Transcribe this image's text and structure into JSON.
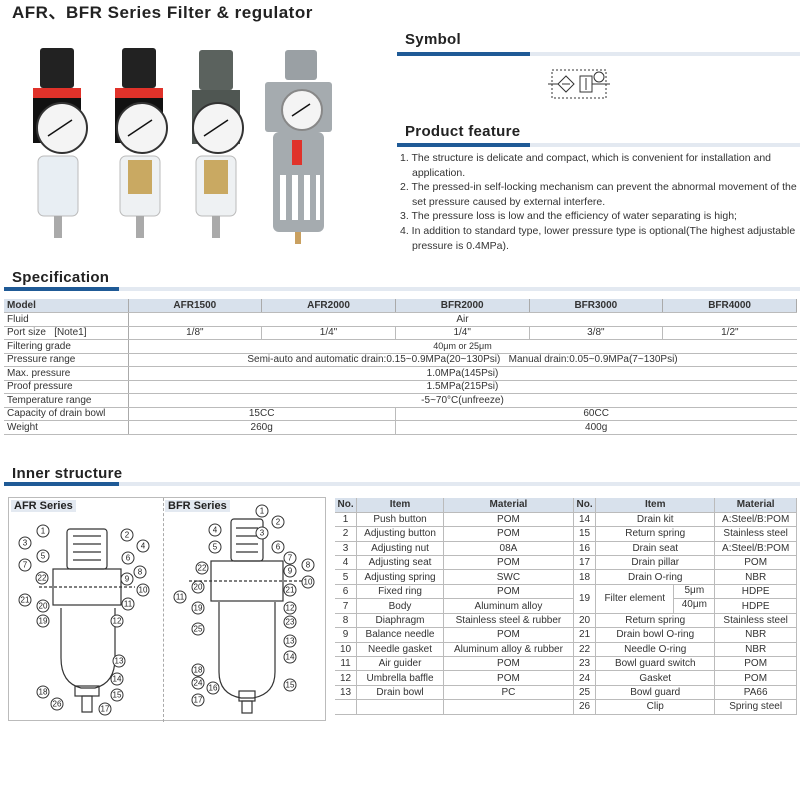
{
  "title": "AFR、BFR Series Filter & regulator",
  "symbol": {
    "heading": "Symbol"
  },
  "features": {
    "heading": "Product feature",
    "items": [
      "1. The structure is delicate and compact, which is convenient for installation and application.",
      "2. The pressed-in self-locking mechanism can prevent the abnormal movement of the set pressure caused by external interfere.",
      "3. The pressure loss is low and the efficiency of water separating is high;",
      "4. In addition to standard type, lower pressure type is optional(The highest adjustable pressure is 0.4MPa)."
    ]
  },
  "colors": {
    "accent": "#1f5a96",
    "header_bg": "#d8e1ec",
    "red": "#e0322a"
  },
  "spec": {
    "heading": "Specification",
    "model_label": "Model",
    "models": [
      "AFR1500",
      "AFR2000",
      "BFR2000",
      "BFR3000",
      "BFR4000"
    ],
    "fluid_label": "Fluid",
    "fluid": "Air",
    "port_label": "Port size   [Note1]",
    "ports": [
      "1/8\"",
      "1/4\"",
      "1/4\"",
      "3/8\"",
      "1/2\""
    ],
    "filter_label": "Filtering grade",
    "filter": "40μm or 25μm",
    "pressure_label": "Pressure range",
    "pressure": "Semi-auto and automatic drain:0.15~0.9MPa(20~130Psi)   Manual drain:0.05~0.9MPa(7~130Psi)",
    "max_label": "Max. pressure",
    "max": "1.0MPa(145Psi)",
    "proof_label": "Proof pressure",
    "proof": "1.5MPa(215Psi)",
    "temp_label": "Temperature range",
    "temp": "-5~70°C(unfreeze)",
    "bowl_label": "Capacity of drain bowl",
    "bowl": [
      "15CC",
      "60CC"
    ],
    "weight_label": "Weight",
    "weight": [
      "260g",
      "400g"
    ]
  },
  "inner": {
    "heading": "Inner structure",
    "afr_label": "AFR Series",
    "bfr_label": "BFR Series",
    "afr_callouts": [
      "1",
      "2",
      "3",
      "4",
      "5",
      "6",
      "7",
      "8",
      "22",
      "9",
      "10",
      "21",
      "11",
      "20",
      "19",
      "12",
      "13",
      "14",
      "18",
      "15",
      "26",
      "17"
    ],
    "bfr_callouts": [
      "1",
      "2",
      "4",
      "3",
      "5",
      "6",
      "7",
      "8",
      "22",
      "9",
      "10",
      "20",
      "21",
      "11",
      "19",
      "12",
      "25",
      "23",
      "13",
      "14",
      "18",
      "24",
      "16",
      "15",
      "17"
    ]
  },
  "parts": {
    "headers": [
      "No.",
      "Item",
      "Material",
      "No.",
      "Item",
      "Material"
    ],
    "left": [
      [
        "1",
        "Push button",
        "POM"
      ],
      [
        "2",
        "Adjusting button",
        "POM"
      ],
      [
        "3",
        "Adjusting nut",
        "08A"
      ],
      [
        "4",
        "Adjusting seat",
        "POM"
      ],
      [
        "5",
        "Adjusting spring",
        "SWC"
      ],
      [
        "6",
        "Fixed ring",
        "POM"
      ],
      [
        "7",
        "Body",
        "Aluminum alloy"
      ],
      [
        "8",
        "Diaphragm",
        "Stainless steel & rubber"
      ],
      [
        "9",
        "Balance needle",
        "POM"
      ],
      [
        "10",
        "Needle gasket",
        "Aluminum alloy & rubber"
      ],
      [
        "11",
        "Air guider",
        "POM"
      ],
      [
        "12",
        "Umbrella baffle",
        "POM"
      ],
      [
        "13",
        "Drain bowl",
        "PC"
      ],
      [
        "",
        "",
        ""
      ]
    ],
    "right": [
      [
        "14",
        "Drain kit",
        "A:Steel/B:POM"
      ],
      [
        "15",
        "Return spring",
        "Stainless steel"
      ],
      [
        "16",
        "Drain seat",
        "A:Steel/B:POM"
      ],
      [
        "17",
        "Drain pillar",
        "POM"
      ],
      [
        "18",
        "Drain O-ring",
        "NBR"
      ],
      [
        "19",
        "Filter element",
        "5μm",
        "HDPE",
        "40μm",
        "HDPE"
      ],
      [
        "20",
        "Return spring",
        "Stainless steel"
      ],
      [
        "21",
        "Drain bowl O-ring",
        "NBR"
      ],
      [
        "22",
        "Needle O-ring",
        "NBR"
      ],
      [
        "23",
        "Bowl guard switch",
        "POM"
      ],
      [
        "24",
        "Gasket",
        "POM"
      ],
      [
        "25",
        "Bowl guard",
        "PA66"
      ],
      [
        "26",
        "Clip",
        "Spring steel"
      ]
    ]
  }
}
